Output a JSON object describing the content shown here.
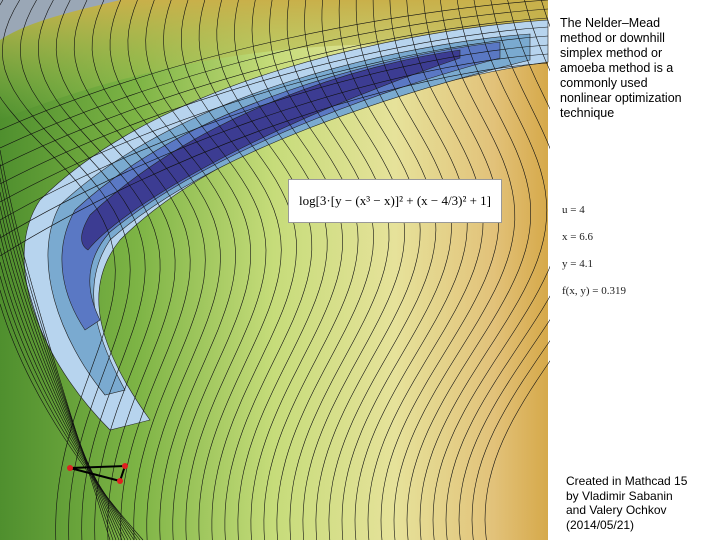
{
  "description": [
    "The Nelder–Mead",
    "method or downhill",
    "simplex method or",
    "amoeba method is a",
    "commonly used",
    "nonlinear optimization",
    "technique"
  ],
  "formula": "log[3·[y − (x³ − x)]² + (x − 4/3)² + 1]",
  "variables": [
    "u = 4",
    "x = 6.6",
    "y = 4.1",
    "f(x, y) = 0.319"
  ],
  "credits": [
    "Created in Mathcad 15",
    "by Vladimir Sabanin",
    "and Valery Ochkov",
    "(2014/05/21)"
  ]
}
